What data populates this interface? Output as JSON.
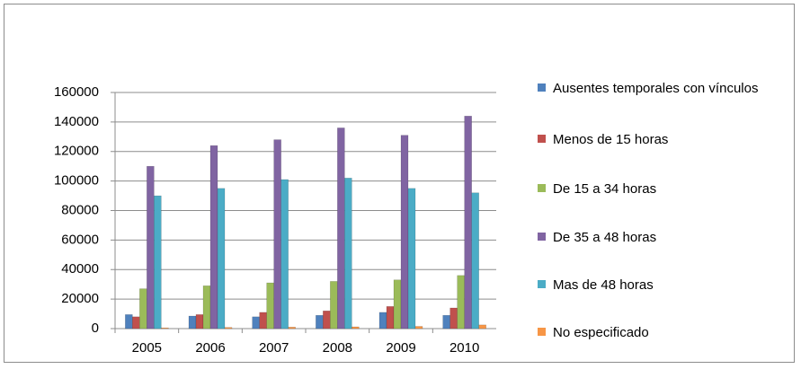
{
  "chart_data": {
    "type": "bar",
    "categories": [
      "2005",
      "2006",
      "2007",
      "2008",
      "2009",
      "2010"
    ],
    "series": [
      {
        "name": "Ausentes temporales con vínculos",
        "color": "#4f81bd",
        "values": [
          9500,
          8500,
          8000,
          9000,
          11000,
          9000
        ]
      },
      {
        "name": "Menos de 15 horas",
        "color": "#c0504d",
        "values": [
          8000,
          9500,
          11000,
          12000,
          15000,
          14000
        ]
      },
      {
        "name": "De 15 a 34 horas",
        "color": "#9bbb59",
        "values": [
          27000,
          29000,
          31000,
          32000,
          33000,
          36000
        ]
      },
      {
        "name": "De 35 a 48 horas",
        "color": "#8064a2",
        "values": [
          110000,
          124000,
          128000,
          136000,
          131000,
          144000
        ]
      },
      {
        "name": "Mas de 48 horas",
        "color": "#4bacc6",
        "values": [
          90000,
          95000,
          101000,
          102000,
          95000,
          92000
        ]
      },
      {
        "name": "No especificado",
        "color": "#f79646",
        "values": [
          500,
          800,
          1000,
          1200,
          1500,
          2500
        ]
      }
    ],
    "ylim": [
      0,
      160000
    ],
    "yticks": [
      0,
      20000,
      40000,
      60000,
      80000,
      100000,
      120000,
      140000,
      160000
    ],
    "grid": true
  }
}
